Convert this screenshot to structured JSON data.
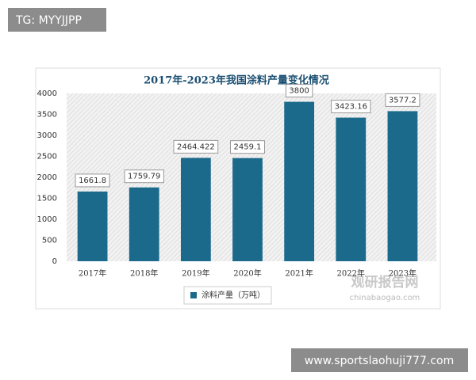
{
  "tag_label": "TG: MYYJJPP",
  "site_label": "www.sportslaohuji777.com",
  "watermark": {
    "name": "观研报告网",
    "url": "chinabaogao.com"
  },
  "chart_data": {
    "type": "bar",
    "title": "2017年-2023年我国涂料产量变化情况",
    "categories": [
      "2017年",
      "2018年",
      "2019年",
      "2020年",
      "2021年",
      "2022年",
      "2023年"
    ],
    "series": [
      {
        "name": "涂料产量（万吨）",
        "color": "#1b6a8c",
        "values": [
          1661.8,
          1759.79,
          2464.422,
          2459.1,
          3800,
          3423.16,
          3577.2
        ]
      }
    ],
    "ylim": [
      0,
      4000
    ],
    "yticks": [
      0,
      500,
      1000,
      1500,
      2000,
      2500,
      3000,
      3500,
      4000
    ],
    "grid": false,
    "legend": "bottom"
  }
}
